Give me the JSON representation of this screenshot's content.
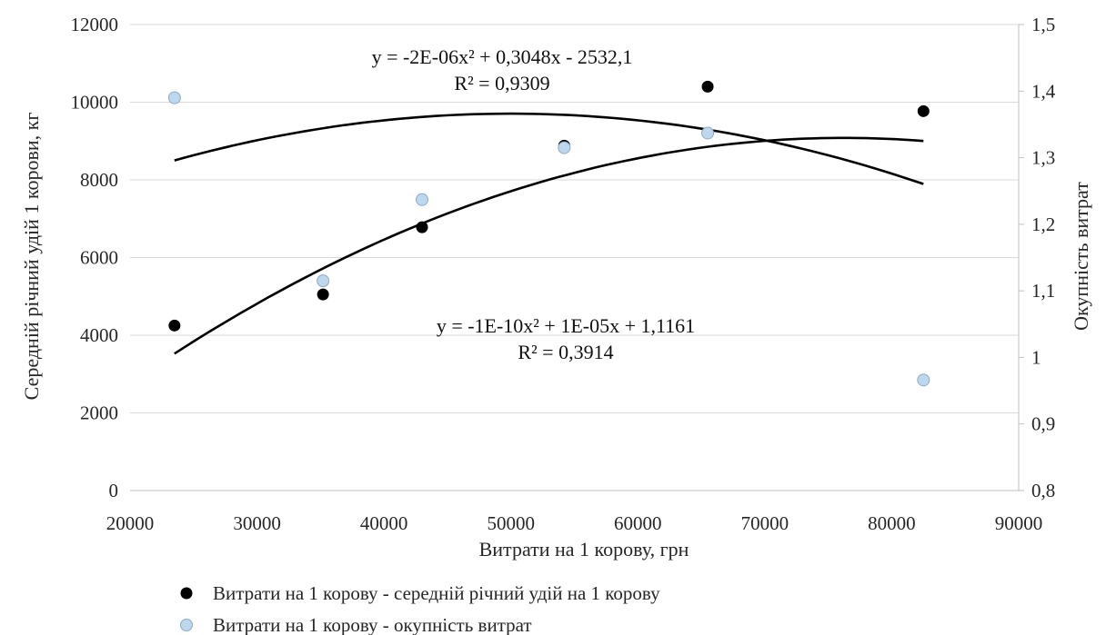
{
  "chart_data": {
    "type": "scatter",
    "xlabel": "Витрати на 1 корову, грн",
    "ylabel": "Середній річний удій  1 корови, кг",
    "y2label": "Окупність витрат",
    "xlim": [
      20000,
      90000
    ],
    "ylim": [
      0,
      12000
    ],
    "y2lim": [
      0.8,
      1.5
    ],
    "x_ticks": [
      "20000",
      "30000",
      "40000",
      "50000",
      "60000",
      "70000",
      "80000",
      "90000"
    ],
    "y_ticks": [
      "0",
      "2000",
      "4000",
      "6000",
      "8000",
      "10000",
      "12000"
    ],
    "y2_ticks": [
      "0,8",
      "0,9",
      "1",
      "1,1",
      "1,2",
      "1,3",
      "1,4",
      "1,5"
    ],
    "grid": "horizontal",
    "legend_position": "bottom",
    "series": [
      {
        "name": "Витрати на 1 корову - середній річний удій на 1 корову",
        "axis": "left",
        "color": "#000000",
        "x": [
          23500,
          35200,
          43000,
          54200,
          65500,
          82500
        ],
        "y": [
          4250,
          5050,
          6780,
          8880,
          10400,
          9770
        ]
      },
      {
        "name": "Витрати на 1 корову - окупність витрат",
        "axis": "right",
        "color": "#bdd7ee",
        "x": [
          23500,
          35200,
          43000,
          54200,
          65500,
          82500
        ],
        "y": [
          1.39,
          1.115,
          1.237,
          1.315,
          1.337,
          0.966
        ]
      }
    ],
    "trendlines": [
      {
        "series": 0,
        "type": "polynomial",
        "coef": [
          -2532.1,
          0.3048,
          -2e-06
        ],
        "equation": "y = -2E-06x² + 0,3048x - 2532,1",
        "r2": "R² = 0,9309"
      },
      {
        "series": 1,
        "type": "polynomial",
        "coef": [
          1.1161,
          1e-05,
          -1e-10
        ],
        "equation": "y = -1E-10x² + 1E-05x + 1,1161",
        "r2": "R² = 0,3914"
      }
    ]
  }
}
